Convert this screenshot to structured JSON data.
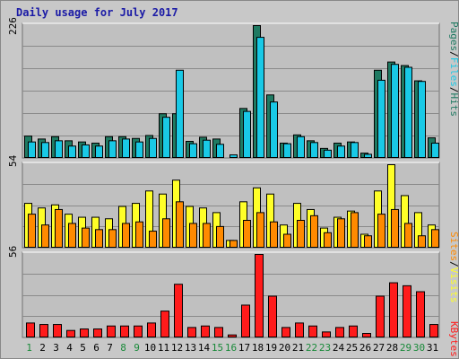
{
  "title": "Daily usage for July 2017",
  "colors": {
    "pages": "#1f7a62",
    "files": "#19c9e6",
    "hits": "#1f7a62",
    "visits": "#ffff28",
    "sites": "#ff8a00",
    "kbytes": "#ff1b1b",
    "weekday_label": "#000000",
    "weekend_label": "#1a8a3a",
    "separator": "#000000"
  },
  "chart_data": [
    {
      "type": "bar",
      "title": "",
      "ylabel": "Pages / Files / Hits",
      "ylabel_parts": [
        "Hits",
        "/",
        "Files",
        "/",
        "Pages"
      ],
      "y_max_label": "226",
      "ylim": [
        0,
        226
      ],
      "grid": true,
      "categories": [
        "1",
        "2",
        "3",
        "4",
        "5",
        "6",
        "7",
        "8",
        "9",
        "10",
        "11",
        "12",
        "13",
        "14",
        "15",
        "16",
        "17",
        "18",
        "19",
        "20",
        "21",
        "22",
        "23",
        "24",
        "25",
        "26",
        "27",
        "28",
        "29",
        "30",
        "31"
      ],
      "series": [
        {
          "name": "Pages",
          "values": [
            38,
            33,
            37,
            30,
            28,
            26,
            37,
            37,
            34,
            39,
            76,
            76,
            29,
            36,
            33,
            0,
            85,
            226,
            108,
            26,
            40,
            30,
            17,
            26,
            28,
            9,
            150,
            164,
            158,
            132,
            35
          ]
        },
        {
          "name": "Files",
          "values": [
            28,
            27,
            30,
            21,
            23,
            21,
            30,
            33,
            28,
            34,
            70,
            150,
            25,
            31,
            24,
            6,
            80,
            206,
            96,
            25,
            37,
            27,
            14,
            21,
            27,
            7,
            133,
            160,
            155,
            131,
            26
          ]
        }
      ]
    },
    {
      "type": "bar",
      "title": "",
      "ylabel": "Sites / Visits",
      "ylabel_parts": [
        "Visits",
        "/",
        "Sites"
      ],
      "y_max_label": "54",
      "ylim": [
        0,
        54
      ],
      "grid": true,
      "categories": [
        "1",
        "2",
        "3",
        "4",
        "5",
        "6",
        "7",
        "8",
        "9",
        "10",
        "11",
        "12",
        "13",
        "14",
        "15",
        "16",
        "17",
        "18",
        "19",
        "20",
        "21",
        "22",
        "23",
        "24",
        "25",
        "26",
        "27",
        "28",
        "29",
        "30",
        "31"
      ],
      "series": [
        {
          "name": "Visits",
          "values": [
            29,
            26,
            28,
            22,
            20,
            20,
            19,
            27,
            29,
            37,
            35,
            44,
            27,
            26,
            23,
            5,
            30,
            39,
            35,
            15,
            29,
            25,
            13,
            20,
            24,
            9,
            37,
            54,
            34,
            23,
            15
          ]
        },
        {
          "name": "Sites",
          "values": [
            22,
            15,
            25,
            16,
            13,
            12,
            12,
            16,
            17,
            11,
            19,
            30,
            16,
            16,
            14,
            5,
            18,
            23,
            17,
            9,
            18,
            21,
            10,
            19,
            23,
            8,
            22,
            25,
            16,
            8,
            12
          ]
        }
      ]
    },
    {
      "type": "bar",
      "title": "",
      "ylabel": "KBytes",
      "ylabel_parts": [
        "KBytes"
      ],
      "y_max_label": "56",
      "ylim": [
        0,
        56
      ],
      "grid": true,
      "categories": [
        "1",
        "2",
        "3",
        "4",
        "5",
        "6",
        "7",
        "8",
        "9",
        "10",
        "11",
        "12",
        "13",
        "14",
        "15",
        "16",
        "17",
        "18",
        "19",
        "20",
        "21",
        "22",
        "23",
        "24",
        "25",
        "26",
        "27",
        "28",
        "29",
        "30",
        "31"
      ],
      "series": [
        {
          "name": "KBytes",
          "values": [
            10,
            9,
            9,
            5,
            6,
            6,
            8,
            8,
            8,
            10,
            18,
            36,
            7,
            8,
            7,
            2,
            22,
            56,
            28,
            7,
            10,
            8,
            4,
            7,
            8,
            3,
            28,
            37,
            35,
            31,
            9
          ]
        }
      ]
    }
  ],
  "x_labels": [
    "1",
    "2",
    "3",
    "4",
    "5",
    "6",
    "7",
    "8",
    "9",
    "10",
    "11",
    "12",
    "13",
    "14",
    "15",
    "16",
    "17",
    "18",
    "19",
    "20",
    "21",
    "22",
    "23",
    "24",
    "25",
    "26",
    "27",
    "28",
    "29",
    "30",
    "31"
  ],
  "weekend_days": [
    1,
    8,
    9,
    15,
    16,
    22,
    23,
    29,
    30
  ]
}
